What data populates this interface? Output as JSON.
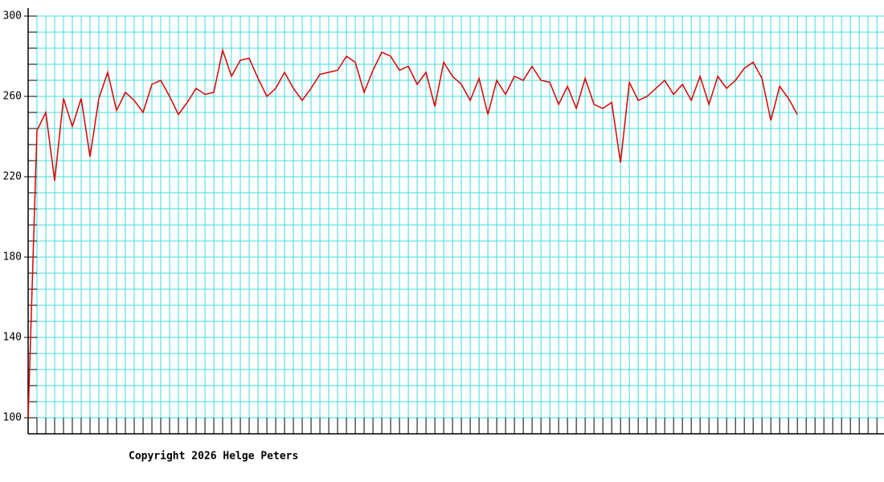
{
  "chart_data": {
    "type": "line",
    "x": [
      0,
      1,
      2,
      3,
      4,
      5,
      6,
      7,
      8,
      9,
      10,
      11,
      12,
      13,
      14,
      15,
      16,
      17,
      18,
      19,
      20,
      21,
      22,
      23,
      24,
      25,
      26,
      27,
      28,
      29,
      30,
      31,
      32,
      33,
      34,
      35,
      36,
      37,
      38,
      39,
      40,
      41,
      42,
      43,
      44,
      45,
      46,
      47,
      48,
      49,
      50,
      51,
      52,
      53,
      54,
      55,
      56,
      57,
      58,
      59,
      60,
      61,
      62,
      63,
      64,
      65,
      66,
      67,
      68,
      69,
      70,
      71,
      72,
      73,
      74,
      75,
      76,
      77,
      78,
      79,
      80,
      81,
      82,
      83,
      84,
      85,
      86,
      87
    ],
    "series": [
      {
        "color": "#dd0000",
        "values": [
          100,
          243,
          252,
          218,
          259,
          245,
          259,
          230,
          259,
          272,
          253,
          262,
          258,
          252,
          266,
          268,
          260,
          251,
          257,
          264,
          261,
          262,
          283,
          270,
          278,
          279,
          269,
          260,
          264,
          272,
          264,
          258,
          264,
          271,
          272,
          273,
          280,
          277,
          262,
          273,
          282,
          280,
          273,
          275,
          266,
          272,
          255,
          277,
          270,
          266,
          258,
          269,
          251,
          268,
          261,
          270,
          268,
          275,
          268,
          267,
          256,
          265,
          254,
          269,
          256,
          254,
          257,
          227,
          267,
          258,
          260,
          264,
          268,
          261,
          266,
          258,
          270,
          256,
          270,
          264,
          268,
          274,
          277,
          269,
          248,
          265,
          259,
          251
        ]
      }
    ],
    "xlim": [
      0,
      96.8
    ],
    "xgrid": [
      0,
      1,
      2,
      3,
      4,
      5,
      6,
      7,
      8,
      9,
      10,
      11,
      12,
      13,
      14,
      15,
      16,
      17,
      18,
      19,
      20,
      21,
      22,
      23,
      24,
      25,
      26,
      27,
      28,
      29,
      30,
      31,
      32,
      33,
      34,
      35,
      36,
      37,
      38,
      39,
      40,
      41,
      42,
      43,
      44,
      45,
      46,
      47,
      48,
      49,
      50,
      51,
      52,
      53,
      54,
      55,
      56,
      57,
      58,
      59,
      60,
      61,
      62,
      63,
      64,
      65,
      66,
      67,
      68,
      69,
      70,
      71,
      72,
      73,
      74,
      75,
      76,
      77,
      78,
      79,
      80,
      81,
      82,
      83,
      84,
      85,
      86,
      87,
      88,
      89,
      90,
      91,
      92,
      93,
      94,
      95,
      96
    ],
    "ylim": [
      92,
      300
    ],
    "yticks": [
      100,
      140,
      180,
      220,
      260,
      300
    ],
    "ygrid": [
      92,
      100,
      108,
      116,
      124,
      132,
      140,
      148,
      156,
      164,
      172,
      180,
      188,
      196,
      204,
      212,
      220,
      228,
      236,
      244,
      252,
      260,
      268,
      276,
      284,
      292,
      300
    ],
    "grid": true,
    "annotation": "Copyright 2026 Helge Peters"
  }
}
